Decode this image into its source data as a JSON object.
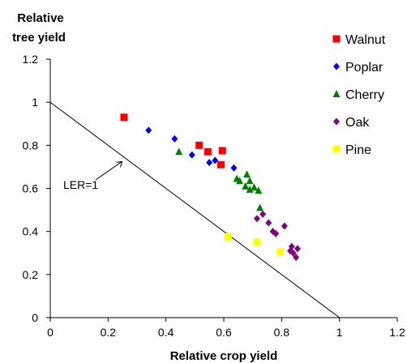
{
  "chart_data": {
    "type": "scatter",
    "xlabel": "Relative crop yield",
    "ylabel_lines": [
      "Relative",
      "tree yield"
    ],
    "xlim": [
      0,
      1.2
    ],
    "ylim": [
      0,
      1.2
    ],
    "x_ticks": [
      "0",
      "0.2",
      "0.4",
      "0.6",
      "0.8",
      "1",
      "1.2"
    ],
    "y_ticks": [
      "0",
      "0.2",
      "0.4",
      "0.6",
      "0.8",
      "1",
      "1.2"
    ],
    "x_tick_values": [
      0,
      0.2,
      0.4,
      0.6,
      0.8,
      1.0,
      1.2
    ],
    "y_tick_values": [
      0,
      0.2,
      0.4,
      0.6,
      0.8,
      1.0,
      1.2
    ],
    "grid": false,
    "legend_position": "top-right",
    "reference_line": {
      "label": "LER=1",
      "from": [
        0,
        1
      ],
      "to": [
        1,
        0
      ]
    },
    "series": [
      {
        "name": "Walnut",
        "color": "#ff0000",
        "marker": "square",
        "points": [
          [
            0.255,
            0.93
          ],
          [
            0.515,
            0.8
          ],
          [
            0.545,
            0.77
          ],
          [
            0.595,
            0.775
          ],
          [
            0.59,
            0.71
          ]
        ]
      },
      {
        "name": "Poplar",
        "color": "#0000ff",
        "marker": "diamond",
        "points": [
          [
            0.34,
            0.87
          ],
          [
            0.43,
            0.83
          ],
          [
            0.49,
            0.755
          ],
          [
            0.55,
            0.72
          ],
          [
            0.57,
            0.73
          ],
          [
            0.635,
            0.695
          ]
        ]
      },
      {
        "name": "Cherry",
        "color": "#008000",
        "marker": "triangle",
        "points": [
          [
            0.445,
            0.77
          ],
          [
            0.645,
            0.645
          ],
          [
            0.655,
            0.635
          ],
          [
            0.675,
            0.61
          ],
          [
            0.68,
            0.665
          ],
          [
            0.69,
            0.635
          ],
          [
            0.69,
            0.595
          ],
          [
            0.705,
            0.605
          ],
          [
            0.72,
            0.59
          ],
          [
            0.725,
            0.51
          ]
        ]
      },
      {
        "name": "Oak",
        "color": "#800080",
        "marker": "diamond",
        "points": [
          [
            0.715,
            0.46
          ],
          [
            0.735,
            0.48
          ],
          [
            0.755,
            0.44
          ],
          [
            0.77,
            0.4
          ],
          [
            0.78,
            0.39
          ],
          [
            0.81,
            0.425
          ],
          [
            0.835,
            0.33
          ],
          [
            0.84,
            0.3
          ],
          [
            0.85,
            0.28
          ],
          [
            0.855,
            0.32
          ],
          [
            0.83,
            0.31
          ]
        ]
      },
      {
        "name": "Pine",
        "color": "#ffff00",
        "marker": "square",
        "points": [
          [
            0.615,
            0.375
          ],
          [
            0.715,
            0.35
          ],
          [
            0.795,
            0.305
          ]
        ]
      }
    ]
  }
}
